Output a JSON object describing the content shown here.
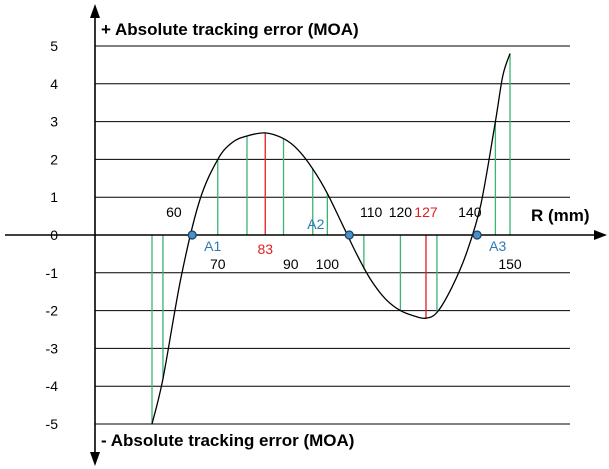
{
  "chart_data": {
    "type": "line",
    "y_title_top": "+ Absolute tracking error (MOA)",
    "y_title_bottom": "- Absolute tracking error (MOA)",
    "xlabel": "R (mm)",
    "ylim": [
      -5,
      5
    ],
    "y_ticks": [
      "5",
      "4",
      "3",
      "2",
      "1",
      "0",
      "-1",
      "-2",
      "-3",
      "-4",
      "-5"
    ],
    "grid": "horizontal",
    "curve": {
      "x": [
        52,
        55,
        60,
        65,
        70,
        74,
        78,
        83,
        88,
        92,
        96,
        100,
        104,
        108,
        112,
        116,
        120,
        124,
        127,
        130,
        134,
        138,
        142,
        146,
        148,
        150
      ],
      "y": [
        -5.0,
        -3.8,
        -1.1,
        0.9,
        2.0,
        2.45,
        2.62,
        2.7,
        2.55,
        2.25,
        1.75,
        1.1,
        0.3,
        -0.5,
        -1.2,
        -1.7,
        -2.0,
        -2.15,
        -2.2,
        -2.05,
        -1.4,
        -0.5,
        0.8,
        3.0,
        4.2,
        4.8
      ]
    },
    "verticals": [
      {
        "x": 52,
        "y": -5.0,
        "color": "#3cb371"
      },
      {
        "x": 55,
        "y": -3.8,
        "color": "#3cb371"
      },
      {
        "x": 70,
        "y": 2.0,
        "color": "#3cb371"
      },
      {
        "x": 78,
        "y": 2.62,
        "color": "#3cb371"
      },
      {
        "x": 83,
        "y": 2.7,
        "color": "#e02020"
      },
      {
        "x": 88,
        "y": 2.55,
        "color": "#3cb371"
      },
      {
        "x": 96,
        "y": 1.75,
        "color": "#3cb371"
      },
      {
        "x": 100,
        "y": 1.1,
        "color": "#3cb371"
      },
      {
        "x": 110,
        "y": -0.9,
        "color": "#3cb371"
      },
      {
        "x": 120,
        "y": -2.0,
        "color": "#3cb371"
      },
      {
        "x": 127,
        "y": -2.2,
        "color": "#e02020"
      },
      {
        "x": 130,
        "y": -2.05,
        "color": "#3cb371"
      },
      {
        "x": 146,
        "y": 3.0,
        "color": "#3cb371"
      },
      {
        "x": 150,
        "y": 4.8,
        "color": "#3cb371"
      }
    ],
    "zero_points": [
      {
        "label": "A1",
        "x": 63
      },
      {
        "label": "A2",
        "x": 106
      },
      {
        "label": "A3",
        "x": 141
      }
    ],
    "x_labels": [
      {
        "text": "60",
        "x": 58,
        "pos": "above",
        "color": "#000000"
      },
      {
        "text": "70",
        "x": 70,
        "pos": "below",
        "color": "#000000"
      },
      {
        "text": "83",
        "x": 83,
        "pos": "below-near",
        "color": "#e02020"
      },
      {
        "text": "90",
        "x": 90,
        "pos": "below",
        "color": "#000000"
      },
      {
        "text": "100",
        "x": 100,
        "pos": "below",
        "color": "#000000"
      },
      {
        "text": "110",
        "x": 112,
        "pos": "above",
        "color": "#000000"
      },
      {
        "text": "120",
        "x": 120,
        "pos": "above",
        "color": "#000000"
      },
      {
        "text": "127",
        "x": 127,
        "pos": "above",
        "color": "#e02020"
      },
      {
        "text": "140",
        "x": 139,
        "pos": "above",
        "color": "#000000"
      },
      {
        "text": "150",
        "x": 150,
        "pos": "below",
        "color": "#000000"
      }
    ],
    "colors": {
      "curve": "#000000",
      "grid": "#000000",
      "green": "#3cb371",
      "red": "#e02020",
      "zero_label": "#2a7ab8",
      "zero_marker_fill": "#4a90c8"
    }
  }
}
